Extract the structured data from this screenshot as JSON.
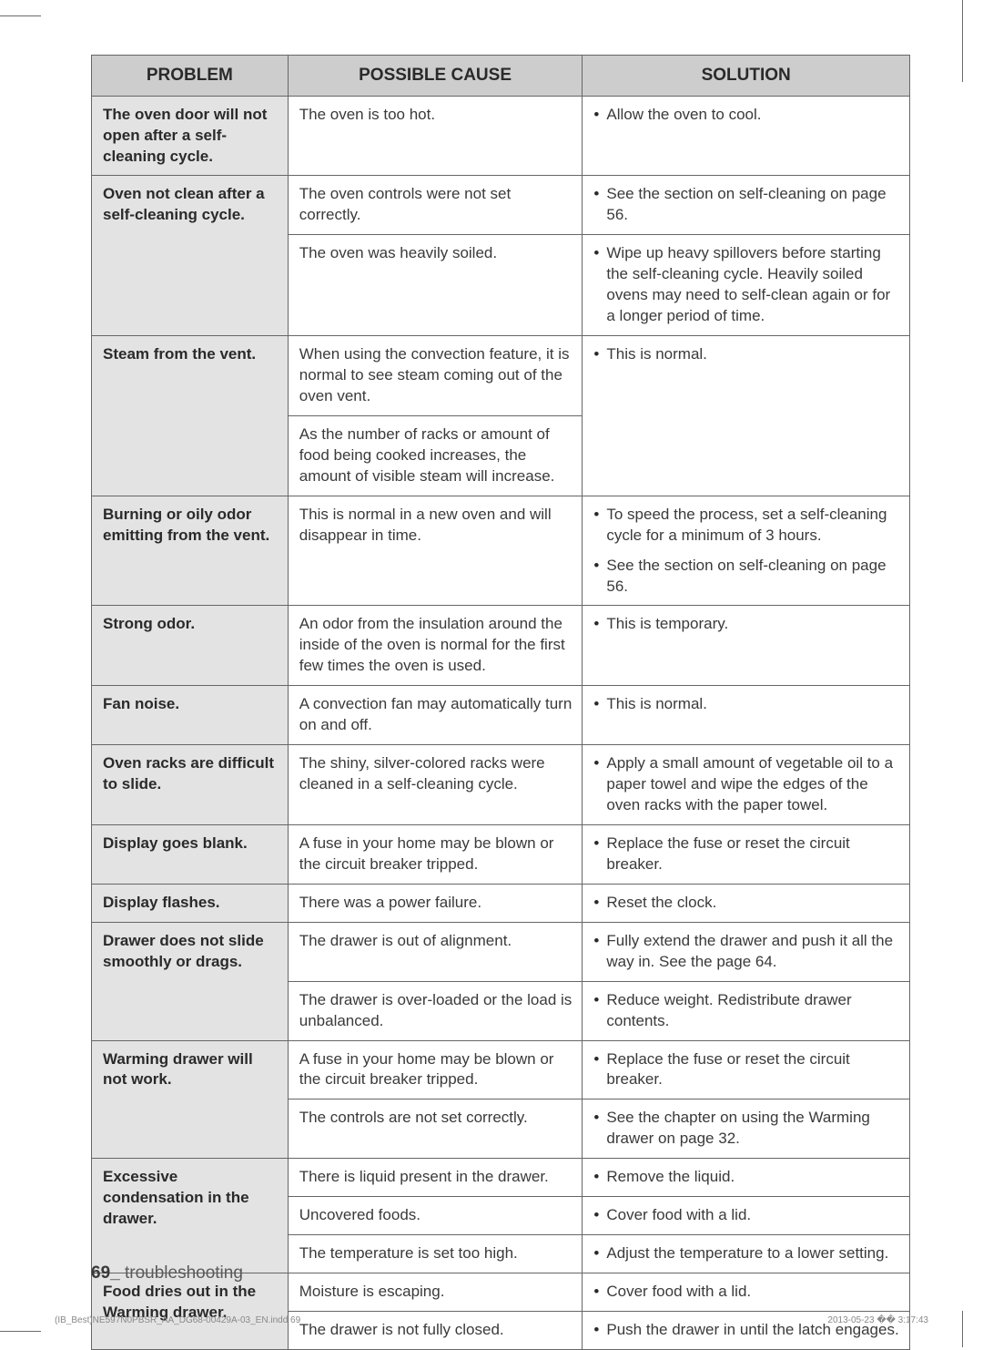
{
  "headers": {
    "problem": "PROBLEM",
    "cause": "POSSIBLE CAUSE",
    "solution": "SOLUTION"
  },
  "rows": {
    "r1": {
      "problem": "The oven door will not open after a self-cleaning cycle.",
      "cause": "The oven is too hot.",
      "sol1": "Allow the oven to cool."
    },
    "r2": {
      "problem": "Oven not clean after a self-cleaning cycle.",
      "cause1": "The oven controls were not set correctly.",
      "sol1": "See the section on self-cleaning on page 56.",
      "cause2": "The oven was heavily soiled.",
      "sol2": "Wipe up heavy spillovers before starting the self-cleaning cycle. Heavily soiled ovens may need to self-clean again or for a longer period of time."
    },
    "r3": {
      "problem": "Steam from the vent.",
      "cause1": "When using the convection feature, it is normal to see steam coming out of the oven vent.",
      "cause2": "As the number of racks or amount of food being cooked increases, the amount of visible steam will increase.",
      "sol1": "This is normal."
    },
    "r4": {
      "problem": "Burning or oily odor emitting from the vent.",
      "cause": "This is normal in a new oven and will disappear in time.",
      "sol1": "To speed the process, set a self-cleaning cycle for a minimum of 3 hours.",
      "sol2": "See the section on self-cleaning on page 56."
    },
    "r5": {
      "problem": "Strong odor.",
      "cause": "An odor from the insulation around the inside of the oven is normal for the first few times the oven is used.",
      "sol1": "This is temporary."
    },
    "r6": {
      "problem": "Fan noise.",
      "cause": "A convection fan may automatically turn on and off.",
      "sol1": "This is normal."
    },
    "r7": {
      "problem": "Oven racks are difficult to slide.",
      "cause": "The shiny, silver-colored racks were cleaned in a self-cleaning cycle.",
      "sol1": "Apply a small amount of vegetable oil to a paper towel and wipe the edges of the oven racks with the paper towel."
    },
    "r8": {
      "problem": "Display goes blank.",
      "cause": "A fuse in your home may be blown or the circuit breaker tripped.",
      "sol1": "Replace the fuse or reset the circuit breaker."
    },
    "r9": {
      "problem": "Display flashes.",
      "cause": "There was a power failure.",
      "sol1": "Reset the clock."
    },
    "r10": {
      "problem": "Drawer does not slide smoothly or drags.",
      "cause1": "The drawer is out of alignment.",
      "sol1": "Fully extend the drawer and push it all the way in. See the page 64.",
      "cause2": "The drawer is over-loaded or the load is unbalanced.",
      "sol2": "Reduce weight. Redistribute drawer contents."
    },
    "r11": {
      "problem": "Warming drawer will not work.",
      "cause1": "A fuse in your home may be blown or the circuit breaker tripped.",
      "sol1": "Replace the fuse or reset the circuit breaker.",
      "cause2": "The controls are not set correctly.",
      "sol2": "See the chapter on using the Warming drawer on page 32."
    },
    "r12": {
      "problem": "Excessive condensation in the drawer.",
      "cause1": "There is liquid present in the drawer.",
      "sol1": "Remove the liquid.",
      "cause2": "Uncovered foods.",
      "sol2": "Cover food with a lid.",
      "cause3": "The temperature is set too high.",
      "sol3": "Adjust the temperature to a lower setting."
    },
    "r13": {
      "problem": "Food dries out in the Warming drawer.",
      "cause1": "Moisture is escaping.",
      "sol1": "Cover food with a lid.",
      "cause2": "The drawer is not fully closed.",
      "sol2": "Push the drawer in until the latch engages."
    }
  },
  "footer": {
    "pagenum": "69_",
    "section": " troubleshooting",
    "printfile": "(IB_Best)NE597N0PBSR_AA_DG68-00429A-03_EN.indd   69",
    "printtime": "2013-05-23   �� 3:17:43"
  }
}
